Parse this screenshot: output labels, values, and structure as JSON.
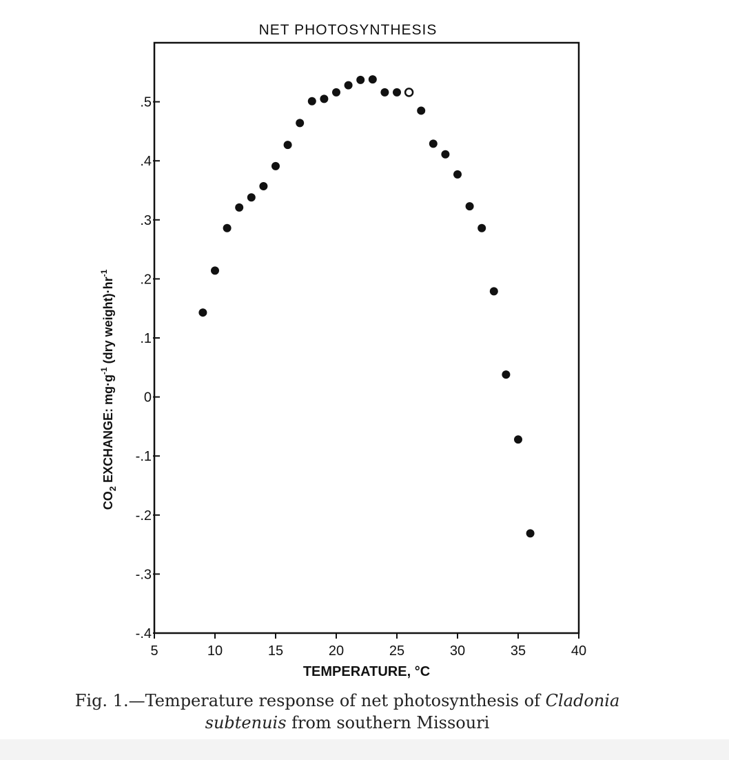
{
  "caption": {
    "prefix": "Fig. 1.—Temperature response of net photosynthesis of ",
    "genus": "Cladonia",
    "species": "subtenuis",
    "suffix": " from southern Missouri"
  },
  "chart_data": {
    "type": "scatter",
    "title": "NET PHOTOSYNTHESIS",
    "xlabel": "TEMPERATURE, °C",
    "ylabel": "CO2 EXCHANGE: mg·g-1 (dry weight)·hr-1",
    "xlim": [
      5,
      40
    ],
    "ylim": [
      -0.4,
      0.6
    ],
    "xticks": [
      5,
      10,
      15,
      20,
      25,
      30,
      35,
      40
    ],
    "xtick_labels": [
      "5",
      "10",
      "15",
      "20",
      "25",
      "30",
      "35",
      "40"
    ],
    "yticks": [
      -0.4,
      -0.3,
      -0.2,
      -0.1,
      0,
      0.1,
      0.2,
      0.3,
      0.4,
      0.5
    ],
    "ytick_labels": [
      "-.4",
      "-.3",
      "-.2",
      "-.1",
      "0",
      ".1",
      ".2",
      ".3",
      ".4",
      ".5"
    ],
    "grid": false,
    "series": [
      {
        "marker": "filled-circle",
        "color": "#111111",
        "x": [
          9,
          10,
          11,
          12,
          13,
          14,
          15,
          16,
          17,
          18,
          19,
          20,
          21,
          22,
          23,
          24,
          25,
          27,
          28,
          29,
          30,
          31,
          32,
          33,
          34,
          35,
          36
        ],
        "y": [
          0.143,
          0.214,
          0.286,
          0.321,
          0.338,
          0.357,
          0.391,
          0.427,
          0.464,
          0.501,
          0.505,
          0.516,
          0.528,
          0.537,
          0.538,
          0.516,
          0.516,
          0.485,
          0.429,
          0.411,
          0.377,
          0.323,
          0.286,
          0.179,
          0.038,
          -0.072,
          -0.231
        ]
      },
      {
        "marker": "open-circle",
        "color": "#111111",
        "x": [
          26
        ],
        "y": [
          0.516
        ]
      }
    ]
  }
}
